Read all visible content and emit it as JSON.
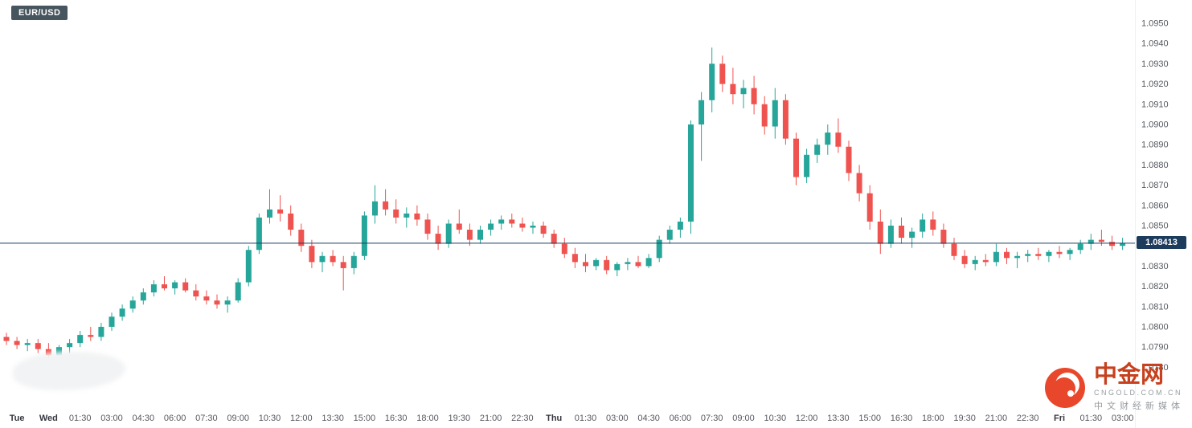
{
  "symbol_badge": {
    "label": "EUR/USD"
  },
  "colors": {
    "up": "#26a69a",
    "down": "#ef5350",
    "price_line": "#1c3b5d",
    "price_badge_bg": "#1c3b5d",
    "axis_text": "#55595f",
    "day_text": "#34383f",
    "symbol_badge_bg": "#47555f",
    "brand_orange": "#c7411e"
  },
  "watermark": {
    "brand": "中金网",
    "domain": "CNGOLD.COM.CN",
    "tagline": "中文财经新媒体"
  },
  "price_axis": {
    "labels": [
      "1.0950",
      "1.0940",
      "1.0930",
      "1.0920",
      "1.0910",
      "1.0900",
      "1.0890",
      "1.0880",
      "1.0870",
      "1.0860",
      "1.0850",
      "1.0830",
      "1.0820",
      "1.0810",
      "1.0800",
      "1.0790",
      "1.0780"
    ]
  },
  "time_axis": {
    "ticks": [
      {
        "i": 1,
        "label": "Tue",
        "day": true
      },
      {
        "i": 4,
        "label": "Wed",
        "day": true
      },
      {
        "i": 7,
        "label": "01:30"
      },
      {
        "i": 10,
        "label": "03:00"
      },
      {
        "i": 13,
        "label": "04:30"
      },
      {
        "i": 16,
        "label": "06:00"
      },
      {
        "i": 19,
        "label": "07:30"
      },
      {
        "i": 22,
        "label": "09:00"
      },
      {
        "i": 25,
        "label": "10:30"
      },
      {
        "i": 28,
        "label": "12:00"
      },
      {
        "i": 31,
        "label": "13:30"
      },
      {
        "i": 34,
        "label": "15:00"
      },
      {
        "i": 37,
        "label": "16:30"
      },
      {
        "i": 40,
        "label": "18:00"
      },
      {
        "i": 43,
        "label": "19:30"
      },
      {
        "i": 46,
        "label": "21:00"
      },
      {
        "i": 49,
        "label": "22:30"
      },
      {
        "i": 52,
        "label": "Thu",
        "day": true
      },
      {
        "i": 55,
        "label": "01:30"
      },
      {
        "i": 58,
        "label": "03:00"
      },
      {
        "i": 61,
        "label": "04:30"
      },
      {
        "i": 64,
        "label": "06:00"
      },
      {
        "i": 67,
        "label": "07:30"
      },
      {
        "i": 70,
        "label": "09:00"
      },
      {
        "i": 73,
        "label": "10:30"
      },
      {
        "i": 76,
        "label": "12:00"
      },
      {
        "i": 79,
        "label": "13:30"
      },
      {
        "i": 82,
        "label": "15:00"
      },
      {
        "i": 85,
        "label": "16:30"
      },
      {
        "i": 88,
        "label": "18:00"
      },
      {
        "i": 91,
        "label": "19:30"
      },
      {
        "i": 94,
        "label": "21:00"
      },
      {
        "i": 97,
        "label": "22:30"
      },
      {
        "i": 100,
        "label": "Fri",
        "day": true
      },
      {
        "i": 103,
        "label": "01:30"
      },
      {
        "i": 106,
        "label": "03:00"
      }
    ]
  },
  "chart_data": {
    "type": "candlestick",
    "symbol": "EUR/USD",
    "current_price": 1.08413,
    "current_price_label": "1.08413",
    "y_axis": {
      "min": 1.077,
      "max": 1.095,
      "tick_step": 0.001,
      "grid": false
    },
    "candle_format": [
      "time",
      "open",
      "high",
      "low",
      "close"
    ],
    "candles": [
      [
        "Tue 22:00",
        1.0795,
        1.0797,
        1.0791,
        1.0793
      ],
      [
        "Tue 22:30",
        1.0793,
        1.0795,
        1.0789,
        1.0791
      ],
      [
        "Tue 23:00",
        1.0791,
        1.0794,
        1.0788,
        1.0792
      ],
      [
        "Tue 23:30",
        1.0792,
        1.0794,
        1.0787,
        1.0789
      ],
      [
        "Wed 00:00",
        1.0789,
        1.0792,
        1.0783,
        1.0786
      ],
      [
        "Wed 00:30",
        1.0786,
        1.0791,
        1.0782,
        1.079
      ],
      [
        "Wed 01:00",
        1.079,
        1.0794,
        1.0787,
        1.0792
      ],
      [
        "Wed 01:30",
        1.0792,
        1.0798,
        1.079,
        1.0796
      ],
      [
        "Wed 02:00",
        1.0796,
        1.08,
        1.0793,
        1.0795
      ],
      [
        "Wed 02:30",
        1.0795,
        1.0802,
        1.0793,
        1.08
      ],
      [
        "Wed 03:00",
        1.08,
        1.0807,
        1.0798,
        1.0805
      ],
      [
        "Wed 03:30",
        1.0805,
        1.0811,
        1.0803,
        1.0809
      ],
      [
        "Wed 04:00",
        1.0809,
        1.0815,
        1.0807,
        1.0813
      ],
      [
        "Wed 04:30",
        1.0813,
        1.0819,
        1.0811,
        1.0817
      ],
      [
        "Wed 05:00",
        1.0817,
        1.0823,
        1.0815,
        1.0821
      ],
      [
        "Wed 05:30",
        1.0821,
        1.0825,
        1.0818,
        1.0819
      ],
      [
        "Wed 06:00",
        1.0819,
        1.0823,
        1.0816,
        1.0822
      ],
      [
        "Wed 06:30",
        1.0822,
        1.0824,
        1.0817,
        1.0818
      ],
      [
        "Wed 07:00",
        1.0818,
        1.0821,
        1.0813,
        1.0815
      ],
      [
        "Wed 07:30",
        1.0815,
        1.0818,
        1.0811,
        1.0813
      ],
      [
        "Wed 08:00",
        1.0813,
        1.0816,
        1.0809,
        1.0811
      ],
      [
        "Wed 08:30",
        1.0811,
        1.0815,
        1.0807,
        1.0813
      ],
      [
        "Wed 09:00",
        1.0813,
        1.0824,
        1.0812,
        1.0822
      ],
      [
        "Wed 09:30",
        1.0822,
        1.084,
        1.082,
        1.0838
      ],
      [
        "Wed 10:00",
        1.0838,
        1.0856,
        1.0836,
        1.0854
      ],
      [
        "Wed 10:30",
        1.0854,
        1.0868,
        1.0851,
        1.0858
      ],
      [
        "Wed 11:00",
        1.0858,
        1.0865,
        1.0852,
        1.0856
      ],
      [
        "Wed 11:30",
        1.0856,
        1.086,
        1.0845,
        1.0848
      ],
      [
        "Wed 12:00",
        1.0848,
        1.0851,
        1.0837,
        1.084
      ],
      [
        "Wed 12:30",
        1.084,
        1.0843,
        1.0829,
        1.0832
      ],
      [
        "Wed 13:00",
        1.0832,
        1.0837,
        1.0827,
        1.0835
      ],
      [
        "Wed 13:30",
        1.0835,
        1.0838,
        1.083,
        1.0832
      ],
      [
        "Wed 14:00",
        1.0832,
        1.0835,
        1.0818,
        1.0829
      ],
      [
        "Wed 14:30",
        1.0829,
        1.0837,
        1.0826,
        1.0835
      ],
      [
        "Wed 15:00",
        1.0835,
        1.0857,
        1.0833,
        1.0855
      ],
      [
        "Wed 15:30",
        1.0855,
        1.087,
        1.0851,
        1.0862
      ],
      [
        "Wed 16:00",
        1.0862,
        1.0868,
        1.0855,
        1.0858
      ],
      [
        "Wed 16:30",
        1.0858,
        1.0863,
        1.0851,
        1.0854
      ],
      [
        "Wed 17:00",
        1.0854,
        1.0859,
        1.0849,
        1.0856
      ],
      [
        "Wed 17:30",
        1.0856,
        1.086,
        1.085,
        1.0853
      ],
      [
        "Wed 18:00",
        1.0853,
        1.0856,
        1.0843,
        1.0846
      ],
      [
        "Wed 18:30",
        1.0846,
        1.085,
        1.0838,
        1.0841
      ],
      [
        "Wed 19:00",
        1.0841,
        1.0853,
        1.0839,
        1.0851
      ],
      [
        "Wed 19:30",
        1.0851,
        1.0858,
        1.0846,
        1.0848
      ],
      [
        "Wed 20:00",
        1.0848,
        1.0851,
        1.084,
        1.0843
      ],
      [
        "Wed 20:30",
        1.0843,
        1.085,
        1.0841,
        1.0848
      ],
      [
        "Wed 21:00",
        1.0848,
        1.0853,
        1.0845,
        1.0851
      ],
      [
        "Wed 21:30",
        1.0851,
        1.0855,
        1.0848,
        1.0853
      ],
      [
        "Wed 22:00",
        1.0853,
        1.0856,
        1.0849,
        1.0851
      ],
      [
        "Wed 22:30",
        1.0851,
        1.0854,
        1.0847,
        1.0849
      ],
      [
        "Wed 23:00",
        1.0849,
        1.0852,
        1.0846,
        1.085
      ],
      [
        "Wed 23:30",
        1.085,
        1.0852,
        1.0844,
        1.0846
      ],
      [
        "Thu 00:00",
        1.0846,
        1.0848,
        1.0839,
        1.0841
      ],
      [
        "Thu 00:30",
        1.0841,
        1.0844,
        1.0834,
        1.0836
      ],
      [
        "Thu 01:00",
        1.0836,
        1.0839,
        1.0829,
        1.0832
      ],
      [
        "Thu 01:30",
        1.0832,
        1.0836,
        1.0827,
        1.083
      ],
      [
        "Thu 02:00",
        1.083,
        1.0834,
        1.0828,
        1.0833
      ],
      [
        "Thu 02:30",
        1.0833,
        1.0835,
        1.0826,
        1.0828
      ],
      [
        "Thu 03:00",
        1.0828,
        1.0832,
        1.0825,
        1.0831
      ],
      [
        "Thu 03:30",
        1.0831,
        1.0834,
        1.0828,
        1.0832
      ],
      [
        "Thu 04:00",
        1.0832,
        1.0835,
        1.0829,
        1.083
      ],
      [
        "Thu 04:30",
        1.083,
        1.0836,
        1.0829,
        1.0834
      ],
      [
        "Thu 05:00",
        1.0834,
        1.0845,
        1.0832,
        1.0843
      ],
      [
        "Thu 05:30",
        1.0843,
        1.085,
        1.0841,
        1.0848
      ],
      [
        "Thu 06:00",
        1.0848,
        1.0854,
        1.0844,
        1.0852
      ],
      [
        "Thu 06:30",
        1.0852,
        1.0902,
        1.0846,
        1.09
      ],
      [
        "Thu 07:00",
        1.09,
        1.0916,
        1.0882,
        1.0912
      ],
      [
        "Thu 07:30",
        1.0912,
        1.0938,
        1.0906,
        1.093
      ],
      [
        "Thu 08:00",
        1.093,
        1.0934,
        1.0916,
        1.092
      ],
      [
        "Thu 08:30",
        1.092,
        1.0928,
        1.091,
        1.0915
      ],
      [
        "Thu 09:00",
        1.0915,
        1.0922,
        1.0908,
        1.0918
      ],
      [
        "Thu 09:30",
        1.0918,
        1.0924,
        1.0905,
        1.091
      ],
      [
        "Thu 10:00",
        1.091,
        1.0914,
        1.0895,
        1.0899
      ],
      [
        "Thu 10:30",
        1.0899,
        1.0918,
        1.0893,
        1.0912
      ],
      [
        "Thu 11:00",
        1.0912,
        1.0915,
        1.089,
        1.0893
      ],
      [
        "Thu 11:30",
        1.0893,
        1.0896,
        1.087,
        1.0874
      ],
      [
        "Thu 12:00",
        1.0874,
        1.0888,
        1.0871,
        1.0885
      ],
      [
        "Thu 12:30",
        1.0885,
        1.0893,
        1.0881,
        1.089
      ],
      [
        "Thu 13:00",
        1.089,
        1.09,
        1.0885,
        1.0896
      ],
      [
        "Thu 13:30",
        1.0896,
        1.0903,
        1.0886,
        1.0889
      ],
      [
        "Thu 14:00",
        1.0889,
        1.0892,
        1.0872,
        1.0876
      ],
      [
        "Thu 14:30",
        1.0876,
        1.088,
        1.0862,
        1.0866
      ],
      [
        "Thu 15:00",
        1.0866,
        1.087,
        1.0848,
        1.0852
      ],
      [
        "Thu 15:30",
        1.0852,
        1.0858,
        1.0836,
        1.0841
      ],
      [
        "Thu 16:00",
        1.0841,
        1.0853,
        1.0839,
        1.085
      ],
      [
        "Thu 16:30",
        1.085,
        1.0854,
        1.0841,
        1.0844
      ],
      [
        "Thu 17:00",
        1.0844,
        1.0849,
        1.0839,
        1.0847
      ],
      [
        "Thu 17:30",
        1.0847,
        1.0856,
        1.0844,
        1.0853
      ],
      [
        "Thu 18:00",
        1.0853,
        1.0857,
        1.0845,
        1.0848
      ],
      [
        "Thu 18:30",
        1.0848,
        1.0851,
        1.0839,
        1.0841
      ],
      [
        "Thu 19:00",
        1.0841,
        1.0844,
        1.0833,
        1.0835
      ],
      [
        "Thu 19:30",
        1.0835,
        1.0838,
        1.0829,
        1.0831
      ],
      [
        "Thu 20:00",
        1.0831,
        1.0835,
        1.0828,
        1.0833
      ],
      [
        "Thu 20:30",
        1.0833,
        1.0836,
        1.083,
        1.0832
      ],
      [
        "Thu 21:00",
        1.0832,
        1.0841,
        1.083,
        1.0837
      ],
      [
        "Thu 21:30",
        1.0837,
        1.0839,
        1.0831,
        1.0834
      ],
      [
        "Thu 22:00",
        1.0834,
        1.0837,
        1.0829,
        1.0835
      ],
      [
        "Thu 22:30",
        1.0835,
        1.0838,
        1.0832,
        1.0836
      ],
      [
        "Thu 23:00",
        1.0836,
        1.0839,
        1.0833,
        1.0835
      ],
      [
        "Thu 23:30",
        1.0835,
        1.0838,
        1.0832,
        1.0837
      ],
      [
        "Fri 00:00",
        1.0837,
        1.084,
        1.0834,
        1.0836
      ],
      [
        "Fri 00:30",
        1.0836,
        1.0839,
        1.0833,
        1.0838
      ],
      [
        "Fri 01:00",
        1.0838,
        1.0843,
        1.0836,
        1.0841
      ],
      [
        "Fri 01:30",
        1.0841,
        1.0846,
        1.0838,
        1.0843
      ],
      [
        "Fri 02:00",
        1.0843,
        1.0848,
        1.084,
        1.0842
      ],
      [
        "Fri 02:30",
        1.0842,
        1.0845,
        1.0838,
        1.084
      ],
      [
        "Fri 03:00",
        1.084,
        1.0844,
        1.0838,
        1.08413
      ]
    ]
  }
}
